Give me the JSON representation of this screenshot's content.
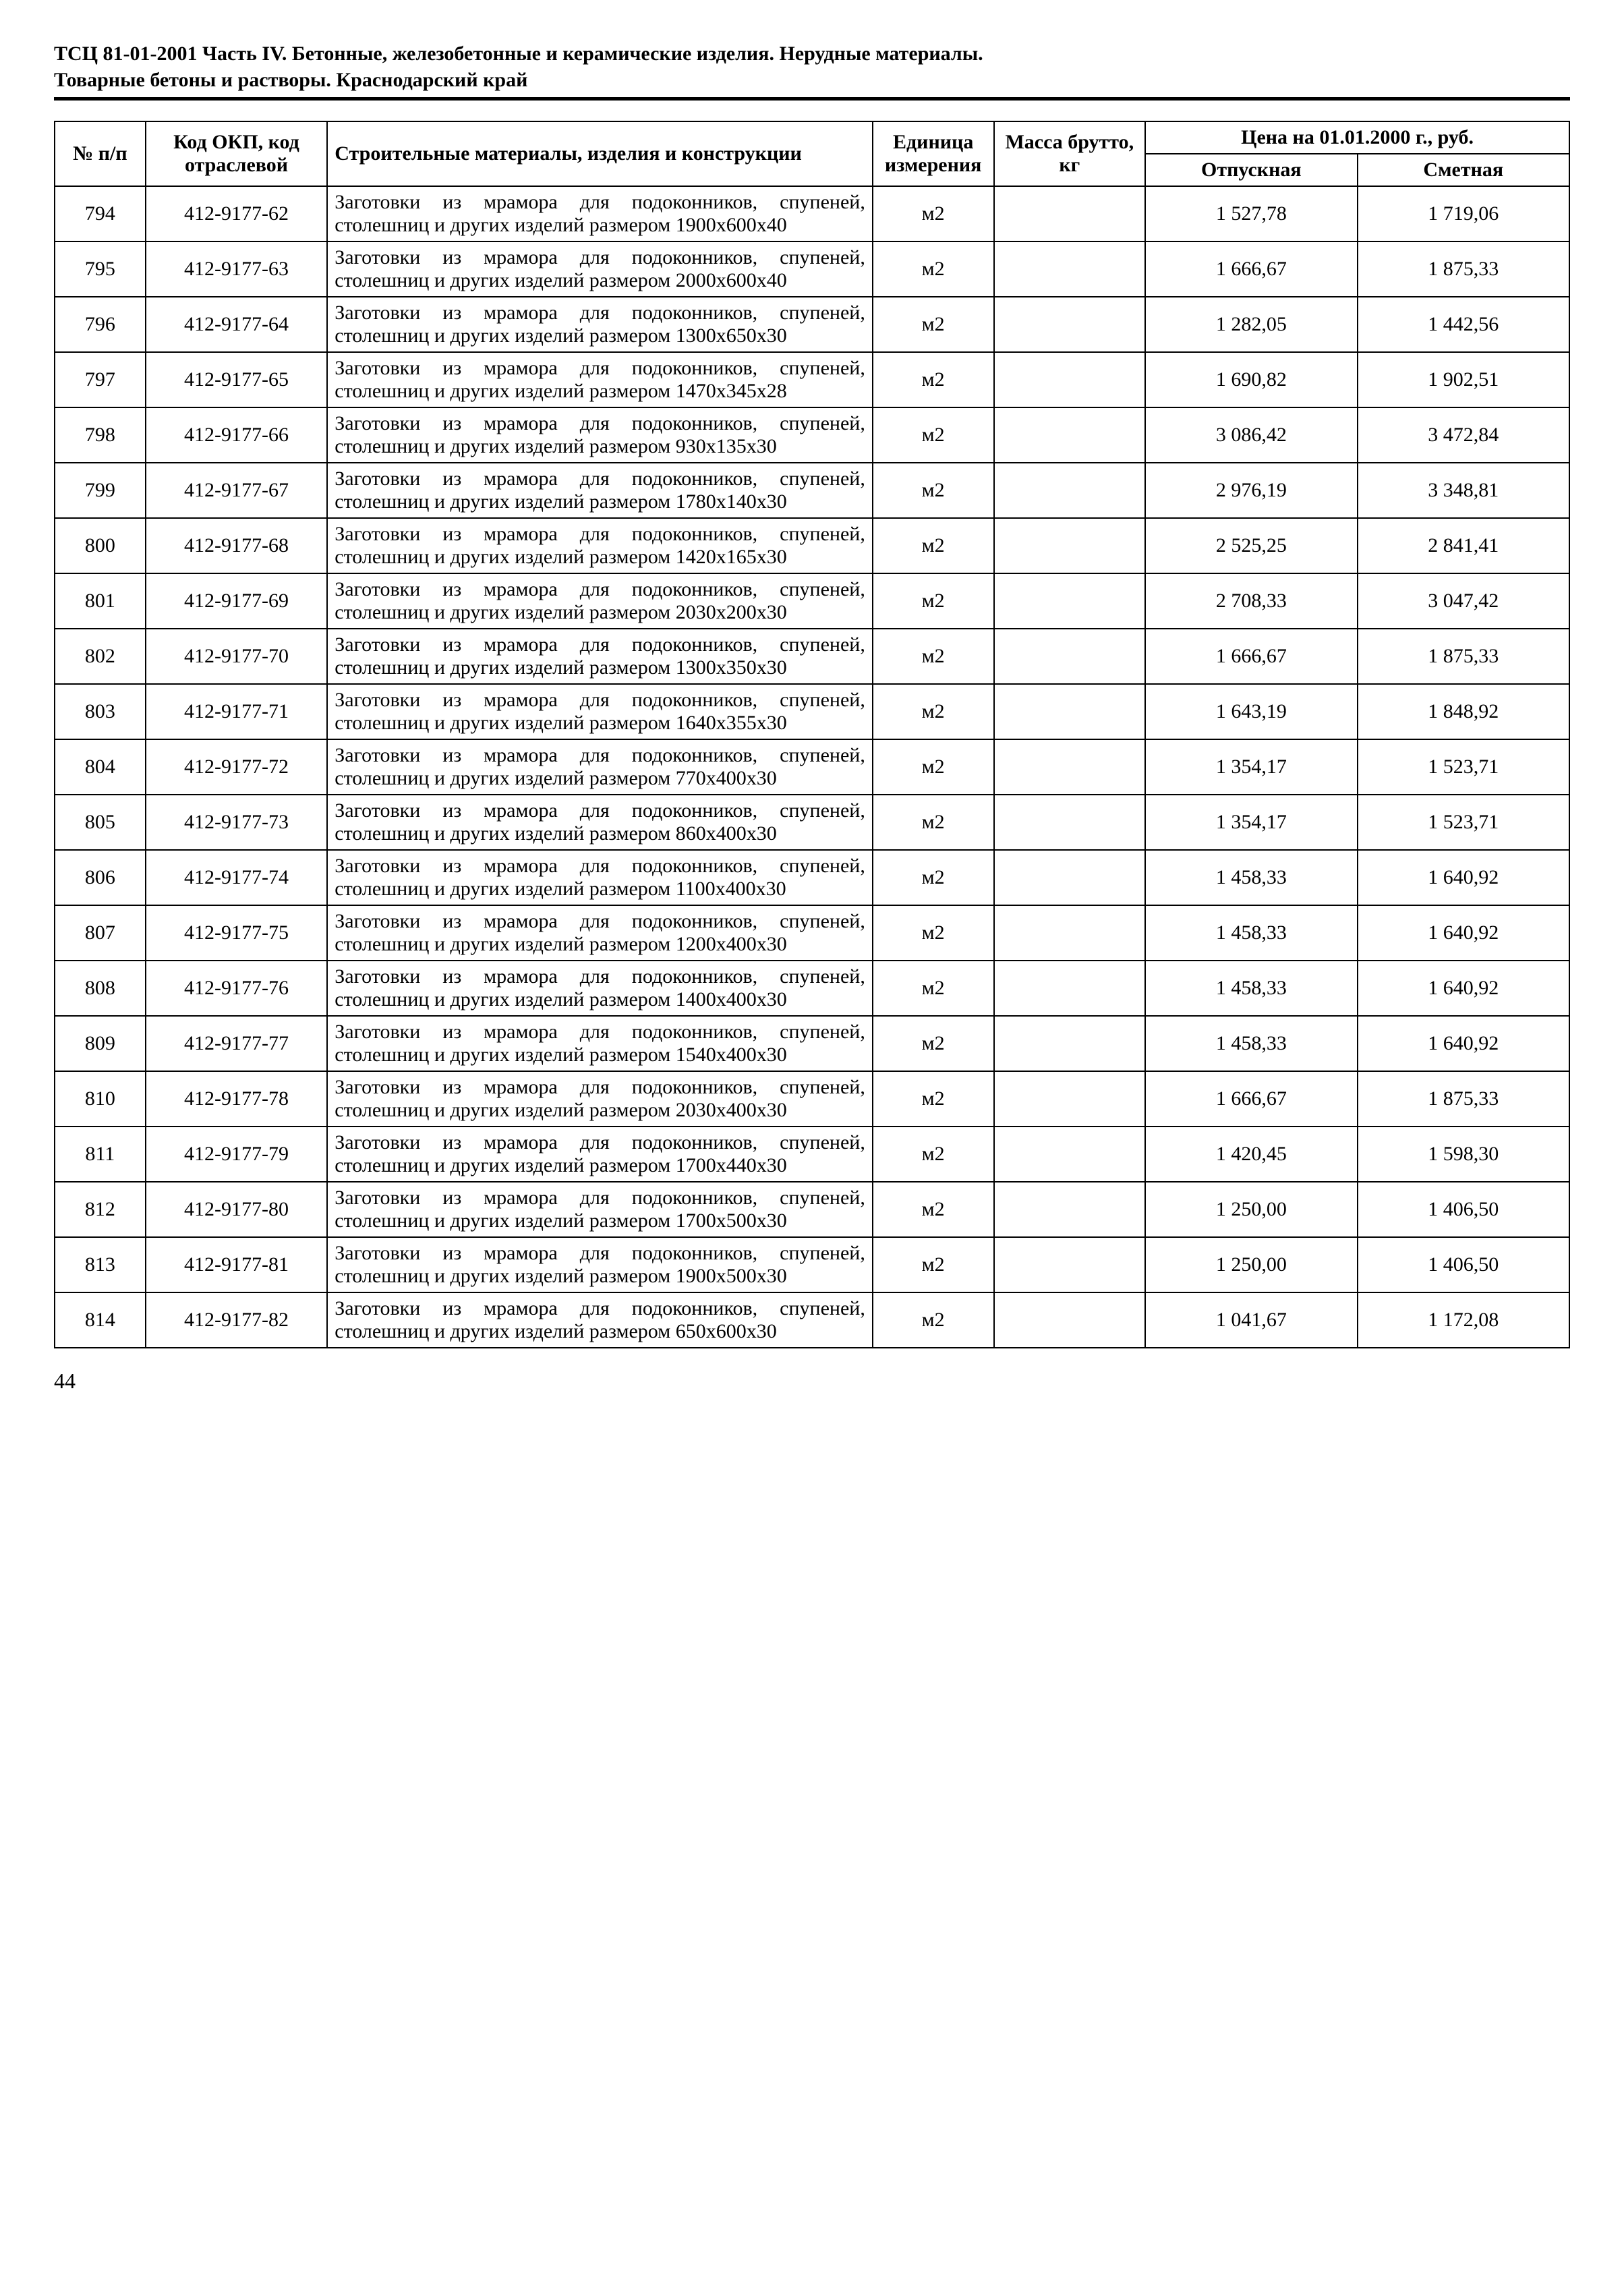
{
  "header": {
    "line1": "ТСЦ 81-01-2001 Часть IV. Бетонные, железобетонные и керамические изделия. Нерудные материалы.",
    "line2": "Товарные бетоны и растворы. Краснодарский край"
  },
  "table": {
    "columns": {
      "num": "№ п/п",
      "code": "Код ОКП, код отраслевой",
      "desc": "Строительные материалы, изделия и конструкции",
      "unit": "Единица измерения",
      "mass": "Масса брутто, кг",
      "price_header": "Цена на 01.01.2000 г., руб.",
      "price1": "Отпускная",
      "price2": "Сметная"
    },
    "rows": [
      {
        "num": "794",
        "code": "412-9177-62",
        "desc": "Заготовки из мрамора для подоконников, спупеней, столешниц и других изделий размером 1900х600х40",
        "unit": "м2",
        "mass": "",
        "p1": "1 527,78",
        "p2": "1 719,06"
      },
      {
        "num": "795",
        "code": "412-9177-63",
        "desc": "Заготовки из мрамора для подоконников, спупеней, столешниц и других изделий размером 2000х600х40",
        "unit": "м2",
        "mass": "",
        "p1": "1 666,67",
        "p2": "1 875,33"
      },
      {
        "num": "796",
        "code": "412-9177-64",
        "desc": "Заготовки из мрамора для подоконников, спупеней, столешниц и других изделий размером 1300х650х30",
        "unit": "м2",
        "mass": "",
        "p1": "1 282,05",
        "p2": "1 442,56"
      },
      {
        "num": "797",
        "code": "412-9177-65",
        "desc": "Заготовки из мрамора для подоконников, спупеней, столешниц и других изделий размером 1470х345х28",
        "unit": "м2",
        "mass": "",
        "p1": "1 690,82",
        "p2": "1 902,51"
      },
      {
        "num": "798",
        "code": "412-9177-66",
        "desc": "Заготовки из мрамора для подоконников, спупеней, столешниц и других изделий размером 930х135х30",
        "unit": "м2",
        "mass": "",
        "p1": "3 086,42",
        "p2": "3 472,84"
      },
      {
        "num": "799",
        "code": "412-9177-67",
        "desc": "Заготовки из мрамора для подоконников, спупеней, столешниц и других изделий размером 1780х140х30",
        "unit": "м2",
        "mass": "",
        "p1": "2 976,19",
        "p2": "3 348,81"
      },
      {
        "num": "800",
        "code": "412-9177-68",
        "desc": "Заготовки из мрамора для подоконников, спупеней, столешниц и других изделий размером 1420х165х30",
        "unit": "м2",
        "mass": "",
        "p1": "2 525,25",
        "p2": "2 841,41"
      },
      {
        "num": "801",
        "code": "412-9177-69",
        "desc": "Заготовки из мрамора для подоконников, спупеней, столешниц и других изделий размером 2030х200х30",
        "unit": "м2",
        "mass": "",
        "p1": "2 708,33",
        "p2": "3 047,42"
      },
      {
        "num": "802",
        "code": "412-9177-70",
        "desc": "Заготовки из мрамора для подоконников, спупеней, столешниц и других изделий размером 1300х350х30",
        "unit": "м2",
        "mass": "",
        "p1": "1 666,67",
        "p2": "1 875,33"
      },
      {
        "num": "803",
        "code": "412-9177-71",
        "desc": "Заготовки из мрамора для подоконников, спупеней, столешниц и других изделий размером 1640х355х30",
        "unit": "м2",
        "mass": "",
        "p1": "1 643,19",
        "p2": "1 848,92"
      },
      {
        "num": "804",
        "code": "412-9177-72",
        "desc": "Заготовки из мрамора для подоконников, спупеней, столешниц и других изделий размером 770х400х30",
        "unit": "м2",
        "mass": "",
        "p1": "1 354,17",
        "p2": "1 523,71"
      },
      {
        "num": "805",
        "code": "412-9177-73",
        "desc": "Заготовки из мрамора для подоконников, спупеней, столешниц и других изделий размером 860х400х30",
        "unit": "м2",
        "mass": "",
        "p1": "1 354,17",
        "p2": "1 523,71"
      },
      {
        "num": "806",
        "code": "412-9177-74",
        "desc": "Заготовки из мрамора для подоконников, спупеней, столешниц и других изделий размером 1100х400х30",
        "unit": "м2",
        "mass": "",
        "p1": "1 458,33",
        "p2": "1 640,92"
      },
      {
        "num": "807",
        "code": "412-9177-75",
        "desc": "Заготовки из мрамора для подоконников, спупеней, столешниц и других изделий размером 1200х400х30",
        "unit": "м2",
        "mass": "",
        "p1": "1 458,33",
        "p2": "1 640,92"
      },
      {
        "num": "808",
        "code": "412-9177-76",
        "desc": "Заготовки из мрамора для подоконников, спупеней, столешниц и других изделий размером 1400х400х30",
        "unit": "м2",
        "mass": "",
        "p1": "1 458,33",
        "p2": "1 640,92"
      },
      {
        "num": "809",
        "code": "412-9177-77",
        "desc": "Заготовки из мрамора для подоконников, спупеней, столешниц и других изделий размером 1540х400х30",
        "unit": "м2",
        "mass": "",
        "p1": "1 458,33",
        "p2": "1 640,92"
      },
      {
        "num": "810",
        "code": "412-9177-78",
        "desc": "Заготовки из мрамора для подоконников, спупеней, столешниц и других изделий размером 2030х400х30",
        "unit": "м2",
        "mass": "",
        "p1": "1 666,67",
        "p2": "1 875,33"
      },
      {
        "num": "811",
        "code": "412-9177-79",
        "desc": "Заготовки из мрамора для подоконников, спупеней, столешниц и других изделий размером 1700х440х30",
        "unit": "м2",
        "mass": "",
        "p1": "1 420,45",
        "p2": "1 598,30"
      },
      {
        "num": "812",
        "code": "412-9177-80",
        "desc": "Заготовки из мрамора для подоконников, спупеней, столешниц и других изделий размером 1700х500х30",
        "unit": "м2",
        "mass": "",
        "p1": "1 250,00",
        "p2": "1 406,50"
      },
      {
        "num": "813",
        "code": "412-9177-81",
        "desc": "Заготовки из мрамора для подоконников, спупеней, столешниц и других изделий размером 1900х500х30",
        "unit": "м2",
        "mass": "",
        "p1": "1 250,00",
        "p2": "1 406,50"
      },
      {
        "num": "814",
        "code": "412-9177-82",
        "desc": "Заготовки из мрамора для подоконников, спупеней, столешниц и других изделий размером 650х600х30",
        "unit": "м2",
        "mass": "",
        "p1": "1 041,67",
        "p2": "1 172,08"
      }
    ]
  },
  "page_number": "44"
}
